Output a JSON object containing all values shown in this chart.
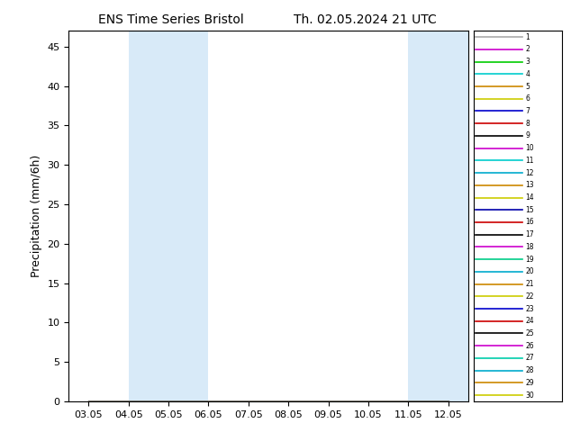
{
  "title_left": "ENS Time Series Bristol",
  "title_right": "Th. 02.05.2024 21 UTC",
  "ylabel": "Precipitation (mm/6h)",
  "ylim": [
    0,
    47
  ],
  "yticks": [
    0,
    5,
    10,
    15,
    20,
    25,
    30,
    35,
    40,
    45
  ],
  "x_labels": [
    "03.05",
    "04.05",
    "05.05",
    "06.05",
    "07.05",
    "08.05",
    "09.05",
    "10.05",
    "11.05",
    "12.05"
  ],
  "shaded_bands": [
    [
      1.0,
      2.0
    ],
    [
      2.0,
      3.0
    ],
    [
      8.0,
      9.0
    ],
    [
      9.0,
      9.6
    ]
  ],
  "shade_color": "#d8eaf8",
  "n_members": 30,
  "member_colors": [
    "#aaaaaa",
    "#cc00cc",
    "#00cc00",
    "#00cccc",
    "#cc8800",
    "#cccc00",
    "#0000cc",
    "#cc0000",
    "#000000",
    "#cc00cc",
    "#00cccc",
    "#00aacc",
    "#cc8800",
    "#cccc00",
    "#0000aa",
    "#cc0000",
    "#000000",
    "#cc00cc",
    "#00cc88",
    "#00aacc",
    "#cc8800",
    "#cccc00",
    "#0000cc",
    "#cc0000",
    "#000000",
    "#cc00cc",
    "#00ccaa",
    "#00aacc",
    "#cc8800",
    "#cccc00"
  ],
  "background_color": "#ffffff",
  "xlim": [
    -0.5,
    9.5
  ],
  "figsize": [
    6.34,
    4.9
  ],
  "dpi": 100
}
